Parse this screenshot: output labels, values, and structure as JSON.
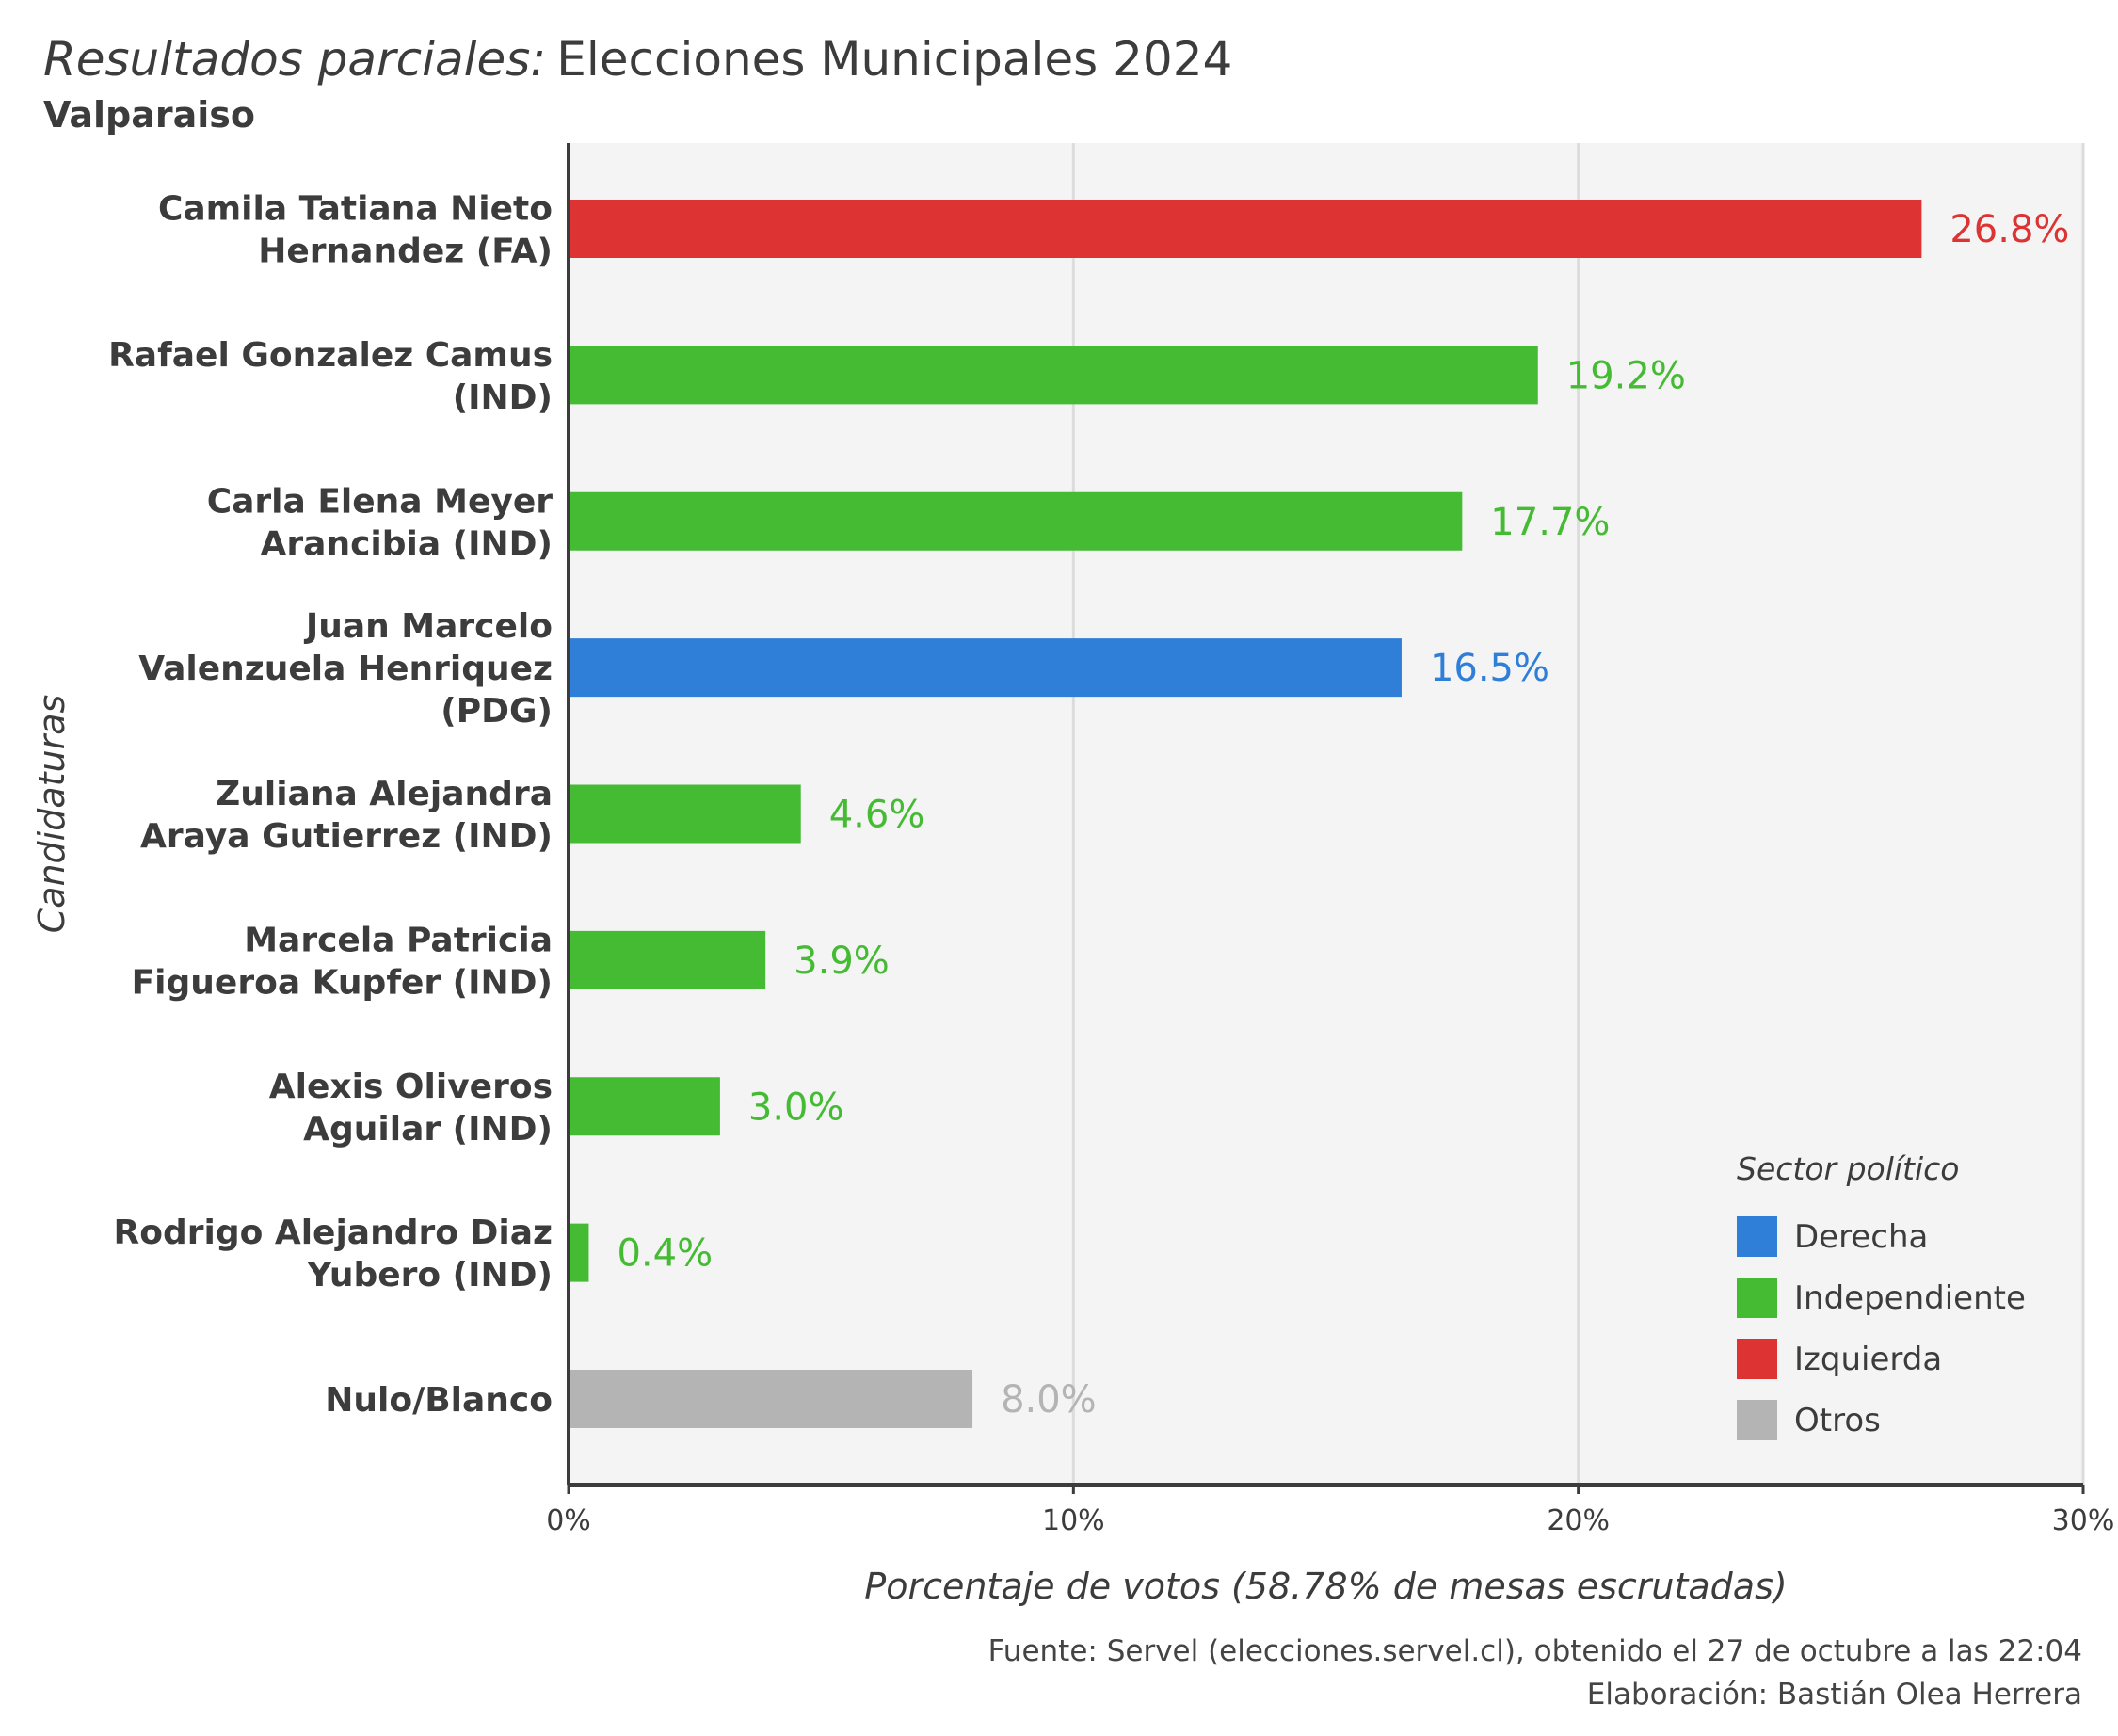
{
  "title": {
    "italic": "Resultados parciales:",
    "main": "Elecciones Municipales 2024",
    "subtitle": "Valparaiso"
  },
  "caption": {
    "source": "Fuente: Servel (elecciones.servel.cl), obtenido el 27 de octubre a las 22:04",
    "author": "Elaboración: Bastián Olea Herrera"
  },
  "legend": {
    "title": "Sector político",
    "items": [
      {
        "label": "Derecha",
        "color": "#2f7ed8"
      },
      {
        "label": "Independiente",
        "color": "#44bb33"
      },
      {
        "label": "Izquierda",
        "color": "#dd3333"
      },
      {
        "label": "Otros",
        "color": "#b4b4b4"
      }
    ]
  },
  "chart_data": {
    "type": "bar",
    "orientation": "horizontal",
    "xlabel": "Porcentaje de votos (58.78% de mesas escrutadas)",
    "ylabel": "Candidaturas",
    "xlim": [
      0,
      30
    ],
    "xticks": [
      "0%",
      "10%",
      "20%",
      "30%"
    ],
    "grid": true,
    "legend_position": "bottom-right",
    "categories": [
      [
        "Camila Tatiana Nieto",
        "Hernandez (FA)"
      ],
      [
        "Rafael Gonzalez Camus",
        "(IND)"
      ],
      [
        "Carla Elena Meyer",
        "Arancibia (IND)"
      ],
      [
        "Juan Marcelo",
        "Valenzuela Henriquez",
        "(PDG)"
      ],
      [
        "Zuliana Alejandra",
        "Araya Gutierrez (IND)"
      ],
      [
        "Marcela Patricia",
        "Figueroa Kupfer (IND)"
      ],
      [
        "Alexis Oliveros",
        "Aguilar (IND)"
      ],
      [
        "Rodrigo Alejandro Diaz",
        "Yubero (IND)"
      ],
      [
        "Nulo/Blanco"
      ]
    ],
    "values": [
      26.8,
      19.2,
      17.7,
      16.5,
      4.6,
      3.9,
      3.0,
      0.4,
      8.0
    ],
    "value_labels": [
      "26.8%",
      "19.2%",
      "17.7%",
      "16.5%",
      "4.6%",
      "3.9%",
      "3.0%",
      "0.4%",
      "8.0%"
    ],
    "sectors": [
      "Izquierda",
      "Independiente",
      "Independiente",
      "Derecha",
      "Independiente",
      "Independiente",
      "Independiente",
      "Independiente",
      "Otros"
    ],
    "colors": {
      "Derecha": "#2f7ed8",
      "Independiente": "#44bb33",
      "Izquierda": "#dd3333",
      "Otros": "#b4b4b4"
    }
  }
}
